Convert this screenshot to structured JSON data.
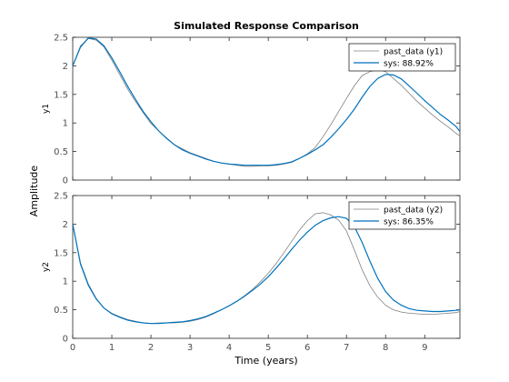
{
  "figure": {
    "title": "Simulated Response Comparison",
    "shared_ylabel": "Amplitude",
    "shared_xlabel": "Time (years)"
  },
  "colors": {
    "measured": "#808080",
    "model": "#0072bd",
    "axes": "#262626",
    "tick_text": "#4d4d4d"
  },
  "chart_data": [
    {
      "type": "line",
      "title": "",
      "xlabel": "",
      "ylabel": "y1",
      "xlim": [
        0,
        9.9
      ],
      "ylim": [
        0,
        2.5
      ],
      "xticks": [
        0,
        1,
        2,
        3,
        4,
        5,
        6,
        7,
        8,
        9
      ],
      "xticklabels_visible": false,
      "yticks": [
        0,
        0.5,
        1,
        1.5,
        2,
        2.5
      ],
      "ytick_labels": [
        "0",
        "0.5",
        "1",
        "1.5",
        "2",
        "2.5"
      ],
      "grid": false,
      "legend": "top-right",
      "series": [
        {
          "name": "past_data (y1)",
          "color": "#808080",
          "x": [
            0,
            0.2,
            0.4,
            0.6,
            0.8,
            1.0,
            1.2,
            1.4,
            1.6,
            1.8,
            2.0,
            2.2,
            2.4,
            2.6,
            2.8,
            3.0,
            3.2,
            3.4,
            3.6,
            3.8,
            4.0,
            4.2,
            4.4,
            4.6,
            4.8,
            5.0,
            5.2,
            5.4,
            5.6,
            5.8,
            6.0,
            6.2,
            6.4,
            6.6,
            6.8,
            7.0,
            7.2,
            7.4,
            7.6,
            7.8,
            8.0,
            8.2,
            8.4,
            8.6,
            8.8,
            9.0,
            9.2,
            9.4,
            9.6,
            9.8,
            9.9
          ],
          "values": [
            2.0,
            2.35,
            2.48,
            2.45,
            2.33,
            2.1,
            1.85,
            1.6,
            1.38,
            1.18,
            0.99,
            0.86,
            0.74,
            0.62,
            0.55,
            0.48,
            0.43,
            0.38,
            0.33,
            0.3,
            0.28,
            0.26,
            0.24,
            0.24,
            0.25,
            0.25,
            0.26,
            0.28,
            0.31,
            0.38,
            0.46,
            0.57,
            0.76,
            0.97,
            1.2,
            1.43,
            1.65,
            1.83,
            1.9,
            1.93,
            1.9,
            1.78,
            1.66,
            1.52,
            1.38,
            1.26,
            1.14,
            1.03,
            0.93,
            0.82,
            0.77
          ]
        },
        {
          "name": "sys: 88.92%",
          "color": "#0072bd",
          "x": [
            0,
            0.2,
            0.4,
            0.6,
            0.8,
            1.0,
            1.2,
            1.4,
            1.6,
            1.8,
            2.0,
            2.2,
            2.4,
            2.6,
            2.8,
            3.0,
            3.2,
            3.4,
            3.6,
            3.8,
            4.0,
            4.2,
            4.4,
            4.6,
            4.8,
            5.0,
            5.2,
            5.4,
            5.6,
            5.8,
            6.0,
            6.2,
            6.4,
            6.6,
            6.8,
            7.0,
            7.2,
            7.4,
            7.6,
            7.8,
            8.0,
            8.2,
            8.4,
            8.6,
            8.8,
            9.0,
            9.2,
            9.4,
            9.6,
            9.8,
            9.9
          ],
          "values": [
            2.0,
            2.33,
            2.49,
            2.47,
            2.35,
            2.14,
            1.9,
            1.65,
            1.42,
            1.2,
            1.02,
            0.86,
            0.73,
            0.62,
            0.53,
            0.47,
            0.42,
            0.37,
            0.33,
            0.3,
            0.28,
            0.27,
            0.26,
            0.26,
            0.26,
            0.26,
            0.27,
            0.29,
            0.32,
            0.38,
            0.45,
            0.53,
            0.62,
            0.75,
            0.9,
            1.06,
            1.24,
            1.45,
            1.64,
            1.78,
            1.85,
            1.84,
            1.77,
            1.65,
            1.52,
            1.39,
            1.27,
            1.15,
            1.05,
            0.94,
            0.85
          ]
        }
      ]
    },
    {
      "type": "line",
      "title": "",
      "xlabel": "",
      "ylabel": "y2",
      "xlim": [
        0,
        9.9
      ],
      "ylim": [
        0,
        2.5
      ],
      "xticks": [
        0,
        1,
        2,
        3,
        4,
        5,
        6,
        7,
        8,
        9
      ],
      "xtick_labels": [
        "0",
        "1",
        "2",
        "3",
        "4",
        "5",
        "6",
        "7",
        "8",
        "9"
      ],
      "yticks": [
        0,
        0.5,
        1,
        1.5,
        2,
        2.5
      ],
      "ytick_labels": [
        "0",
        "0.5",
        "1",
        "1.5",
        "2",
        "2.5"
      ],
      "grid": false,
      "legend": "top-right",
      "series": [
        {
          "name": "past_data (y2)",
          "color": "#808080",
          "x": [
            0,
            0.2,
            0.4,
            0.6,
            0.8,
            1.0,
            1.2,
            1.4,
            1.6,
            1.8,
            2.0,
            2.2,
            2.4,
            2.6,
            2.8,
            3.0,
            3.2,
            3.4,
            3.6,
            3.8,
            4.0,
            4.2,
            4.4,
            4.6,
            4.8,
            5.0,
            5.2,
            5.4,
            5.6,
            5.8,
            6.0,
            6.2,
            6.4,
            6.6,
            6.8,
            7.0,
            7.2,
            7.4,
            7.6,
            7.8,
            8.0,
            8.2,
            8.4,
            8.6,
            8.8,
            9.0,
            9.2,
            9.4,
            9.6,
            9.8,
            9.9
          ],
          "values": [
            2.0,
            1.32,
            0.95,
            0.7,
            0.53,
            0.44,
            0.38,
            0.33,
            0.3,
            0.27,
            0.26,
            0.27,
            0.27,
            0.27,
            0.28,
            0.3,
            0.33,
            0.37,
            0.43,
            0.5,
            0.57,
            0.65,
            0.75,
            0.86,
            0.99,
            1.14,
            1.31,
            1.5,
            1.7,
            1.9,
            2.06,
            2.18,
            2.2,
            2.16,
            2.07,
            1.88,
            1.55,
            1.2,
            0.92,
            0.72,
            0.58,
            0.5,
            0.46,
            0.44,
            0.43,
            0.42,
            0.42,
            0.43,
            0.44,
            0.45,
            0.47
          ]
        },
        {
          "name": "sys: 86.35%",
          "color": "#0072bd",
          "x": [
            0,
            0.2,
            0.4,
            0.6,
            0.8,
            1.0,
            1.2,
            1.4,
            1.6,
            1.8,
            2.0,
            2.2,
            2.4,
            2.6,
            2.8,
            3.0,
            3.2,
            3.4,
            3.6,
            3.8,
            4.0,
            4.2,
            4.4,
            4.6,
            4.8,
            5.0,
            5.2,
            5.4,
            5.6,
            5.8,
            6.0,
            6.2,
            6.4,
            6.6,
            6.8,
            7.0,
            7.2,
            7.4,
            7.6,
            7.8,
            8.0,
            8.2,
            8.4,
            8.6,
            8.8,
            9.0,
            9.2,
            9.4,
            9.6,
            9.8,
            9.9
          ],
          "values": [
            2.0,
            1.3,
            0.93,
            0.69,
            0.53,
            0.43,
            0.37,
            0.32,
            0.29,
            0.27,
            0.26,
            0.26,
            0.27,
            0.28,
            0.29,
            0.31,
            0.34,
            0.38,
            0.44,
            0.5,
            0.57,
            0.65,
            0.74,
            0.84,
            0.95,
            1.08,
            1.23,
            1.39,
            1.56,
            1.72,
            1.86,
            1.98,
            2.06,
            2.11,
            2.13,
            2.1,
            1.96,
            1.68,
            1.35,
            1.05,
            0.82,
            0.67,
            0.58,
            0.52,
            0.49,
            0.48,
            0.47,
            0.47,
            0.48,
            0.49,
            0.5
          ]
        }
      ]
    }
  ]
}
